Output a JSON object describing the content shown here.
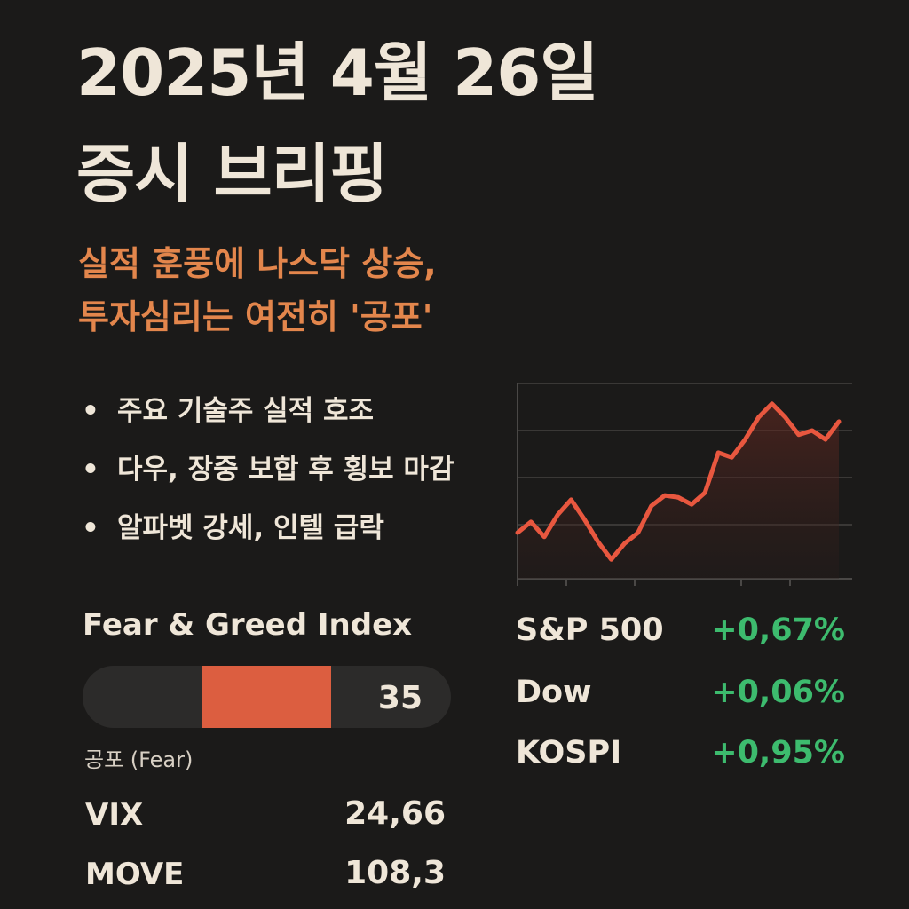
{
  "title": [
    "2025년 4월 26일",
    "증시 브리핑"
  ],
  "subtitle": [
    "실적 훈풍에 나스닥 상승,",
    "투자심리는 여전히 '공포'"
  ],
  "bullets": [
    "주요 기술주 실적 호조",
    "다우, 장중 보합 후 횡보 마감",
    "알파벳 강세, 인텔 급락"
  ],
  "fear_greed": {
    "title": "Fear & Greed Index",
    "value": 35,
    "label": "공포 (Fear)"
  },
  "metrics": [
    {
      "name": "VIX",
      "value": "24,66"
    },
    {
      "name": "MOVE",
      "value": "108,3"
    }
  ],
  "indices": [
    {
      "name": "S&P 500",
      "change": "+0,67%"
    },
    {
      "name": "Dow",
      "change": "+0,06%"
    },
    {
      "name": "KOSPI",
      "change": "+0,95%"
    }
  ],
  "chart_data": {
    "type": "line",
    "color": "#e8573f",
    "values": [
      0.83,
      1.06,
      0.74,
      1.21,
      1.53,
      1.11,
      0.64,
      0.26,
      0.6,
      0.83,
      1.4,
      1.62,
      1.58,
      1.43,
      1.68,
      2.53,
      2.43,
      2.81,
      3.28,
      3.57,
      3.28,
      2.91,
      3.0,
      2.81,
      3.19
    ],
    "ylim": [
      0,
      4
    ],
    "yticks": [
      1,
      2,
      3,
      4
    ],
    "grid": true
  }
}
